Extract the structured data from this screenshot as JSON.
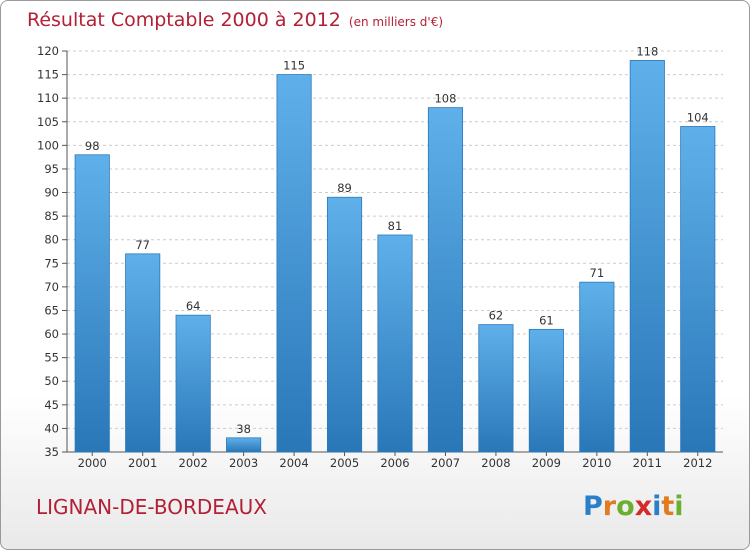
{
  "title": "Résultat Comptable 2000 à 2012",
  "subtitle": "(en milliers d'€)",
  "town": "LIGNAN-DE-BORDEAUX",
  "logo": {
    "text": "Proxiti",
    "letters": [
      {
        "ch": "P",
        "color": "#2a7fc9"
      },
      {
        "ch": "r",
        "color": "#e07b1f"
      },
      {
        "ch": "o",
        "color": "#6aaf2d"
      },
      {
        "ch": "x",
        "color": "#d42a2a"
      },
      {
        "ch": "i",
        "color": "#2a7fc9"
      },
      {
        "ch": "t",
        "color": "#e07b1f"
      },
      {
        "ch": "i",
        "color": "#6aaf2d"
      }
    ]
  },
  "colors": {
    "title": "#b31f35",
    "bar_top": "#5fb0ea",
    "bar_bottom": "#2a77b8",
    "grid": "#cccccc"
  },
  "chart_data": {
    "type": "bar",
    "title": "Résultat Comptable 2000 à 2012",
    "subtitle": "(en milliers d'€)",
    "xlabel": "",
    "ylabel": "",
    "categories": [
      "2000",
      "2001",
      "2002",
      "2003",
      "2004",
      "2005",
      "2006",
      "2007",
      "2008",
      "2009",
      "2010",
      "2011",
      "2012"
    ],
    "values": [
      98,
      77,
      64,
      38,
      115,
      89,
      81,
      108,
      62,
      61,
      71,
      118,
      104
    ],
    "ylim": [
      35,
      120
    ],
    "yticks": [
      35,
      40,
      45,
      50,
      55,
      60,
      65,
      70,
      75,
      80,
      85,
      90,
      95,
      100,
      105,
      110,
      115,
      120
    ],
    "grid": true,
    "legend": "none"
  }
}
